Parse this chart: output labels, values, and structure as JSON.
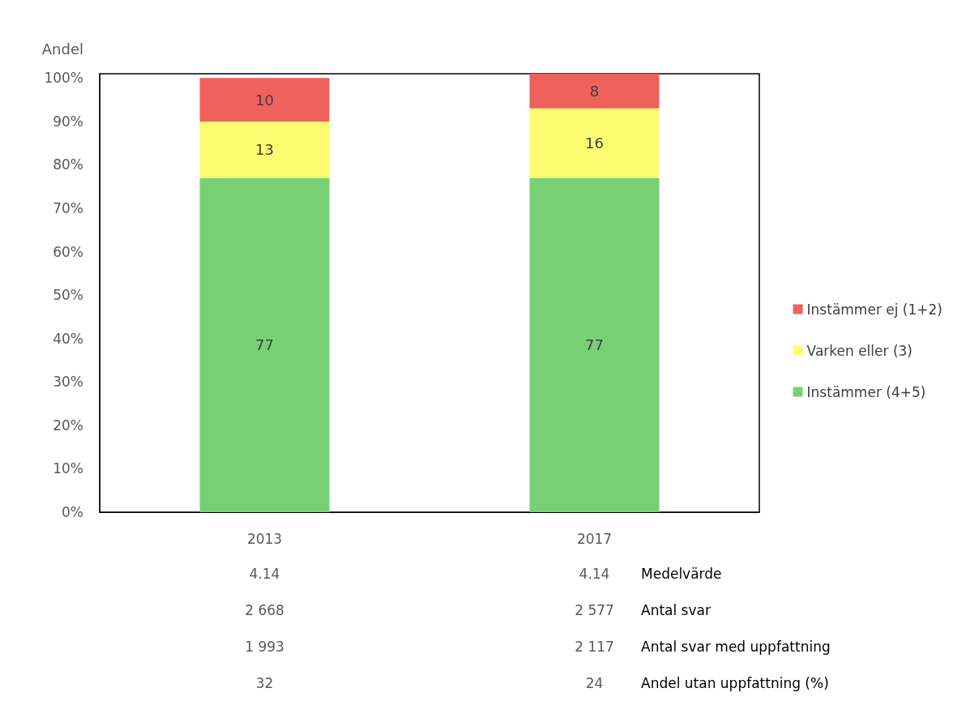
{
  "chart_data": {
    "type": "bar",
    "stacked": true,
    "ylabel": "Andel",
    "categories": [
      "2013",
      "2017"
    ],
    "series": [
      {
        "name": "Instämmer (4+5)",
        "color": "#77d174",
        "values": [
          77,
          77
        ]
      },
      {
        "name": "Varken eller (3)",
        "color": "#fdfc71",
        "values": [
          13,
          16
        ]
      },
      {
        "name": "Instämmer ej (1+2)",
        "color": "#ef615c",
        "values": [
          10,
          8
        ]
      }
    ],
    "data_labels": true,
    "ylim": [
      0,
      101
    ],
    "yticks": [
      {
        "value": 0,
        "label": "0%"
      },
      {
        "value": 10,
        "label": "10%"
      },
      {
        "value": 20,
        "label": "20%"
      },
      {
        "value": 30,
        "label": "30%"
      },
      {
        "value": 40,
        "label": "40%"
      },
      {
        "value": 50,
        "label": "50%"
      },
      {
        "value": 60,
        "label": "60%"
      },
      {
        "value": 70,
        "label": "70%"
      },
      {
        "value": 80,
        "label": "80%"
      },
      {
        "value": 90,
        "label": "90%"
      },
      {
        "value": 100,
        "label": "100%"
      }
    ],
    "grid": false,
    "legend": "right",
    "annotations": [
      "4.14",
      "4.14",
      "Medelvärde",
      "2 668",
      "2 577",
      "Antal svar",
      "1 993",
      "2 117",
      "Antal svar med uppfattning",
      "32",
      "24",
      "Andel utan uppfattning (%)"
    ]
  }
}
